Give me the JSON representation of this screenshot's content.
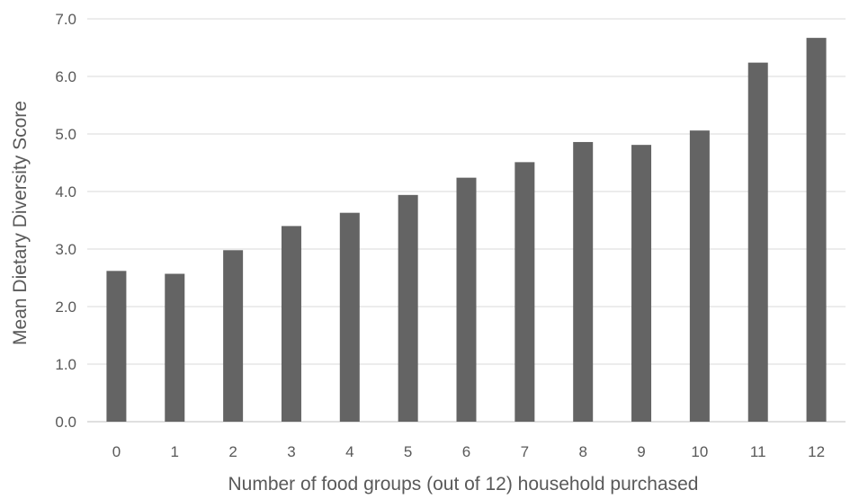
{
  "chart_data": {
    "type": "bar",
    "title": "",
    "xlabel": "Number of food groups (out of 12) household purchased",
    "ylabel": "Mean Dietary Diversity Score",
    "categories": [
      "0",
      "1",
      "2",
      "3",
      "4",
      "5",
      "6",
      "7",
      "8",
      "9",
      "10",
      "11",
      "12"
    ],
    "values": [
      2.62,
      2.57,
      2.98,
      3.4,
      3.63,
      3.94,
      4.24,
      4.51,
      4.86,
      4.81,
      5.06,
      6.24,
      6.67
    ],
    "ylim": [
      0,
      7
    ],
    "yticks": [
      "0.0",
      "1.0",
      "2.0",
      "3.0",
      "4.0",
      "5.0",
      "6.0",
      "7.0"
    ],
    "grid": "horizontal",
    "legend": "none",
    "bar_color": "#646464"
  }
}
